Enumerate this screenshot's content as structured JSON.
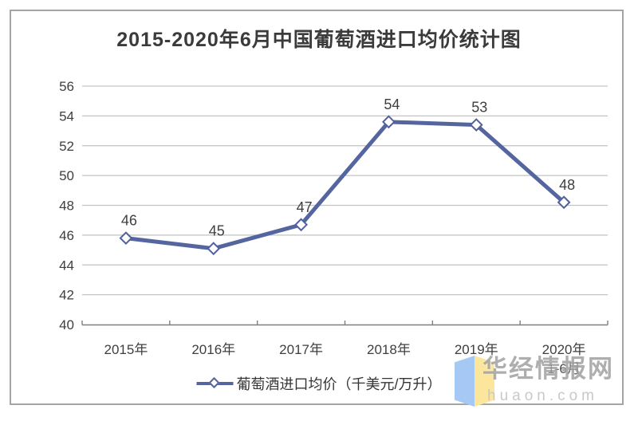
{
  "title": "2015-2020年6月中国葡萄酒进口均价统计图",
  "legend": {
    "label": "葡萄酒进口均价（千美元/万升）"
  },
  "watermark": {
    "name": "华经情报网",
    "domain": "huaon.com"
  },
  "colors": {
    "line": "#55659f",
    "marker_stroke": "#51619e",
    "marker_fill": "#ffffff",
    "grid": "#c3c3c3",
    "axis": "#7f7f7f",
    "text": "#3f3f3f",
    "border": "#a5a5a5",
    "logo_blue": "#a6c8f4",
    "logo_yellow": "#fbe69b"
  },
  "chart_data": {
    "type": "line",
    "title": "2015-2020年6月中国葡萄酒进口均价统计图",
    "categories": [
      "2015年",
      "2016年",
      "2017年",
      "2018年",
      "2019年",
      "2020年"
    ],
    "category_note": {
      "index": 5,
      "text": "1-6月"
    },
    "series": [
      {
        "name": "葡萄酒进口均价（千美元/万升）",
        "values": [
          45.8,
          45.1,
          46.7,
          53.6,
          53.4,
          48.2
        ],
        "labels": [
          "46",
          "45",
          "47",
          "54",
          "53",
          "48"
        ]
      }
    ],
    "xlabel": "",
    "ylabel": "",
    "ylim": [
      40,
      56
    ],
    "yticks": [
      40,
      42,
      44,
      46,
      48,
      50,
      52,
      54,
      56
    ],
    "grid": "horizontal",
    "legend_position": "bottom",
    "marker": "diamond"
  }
}
